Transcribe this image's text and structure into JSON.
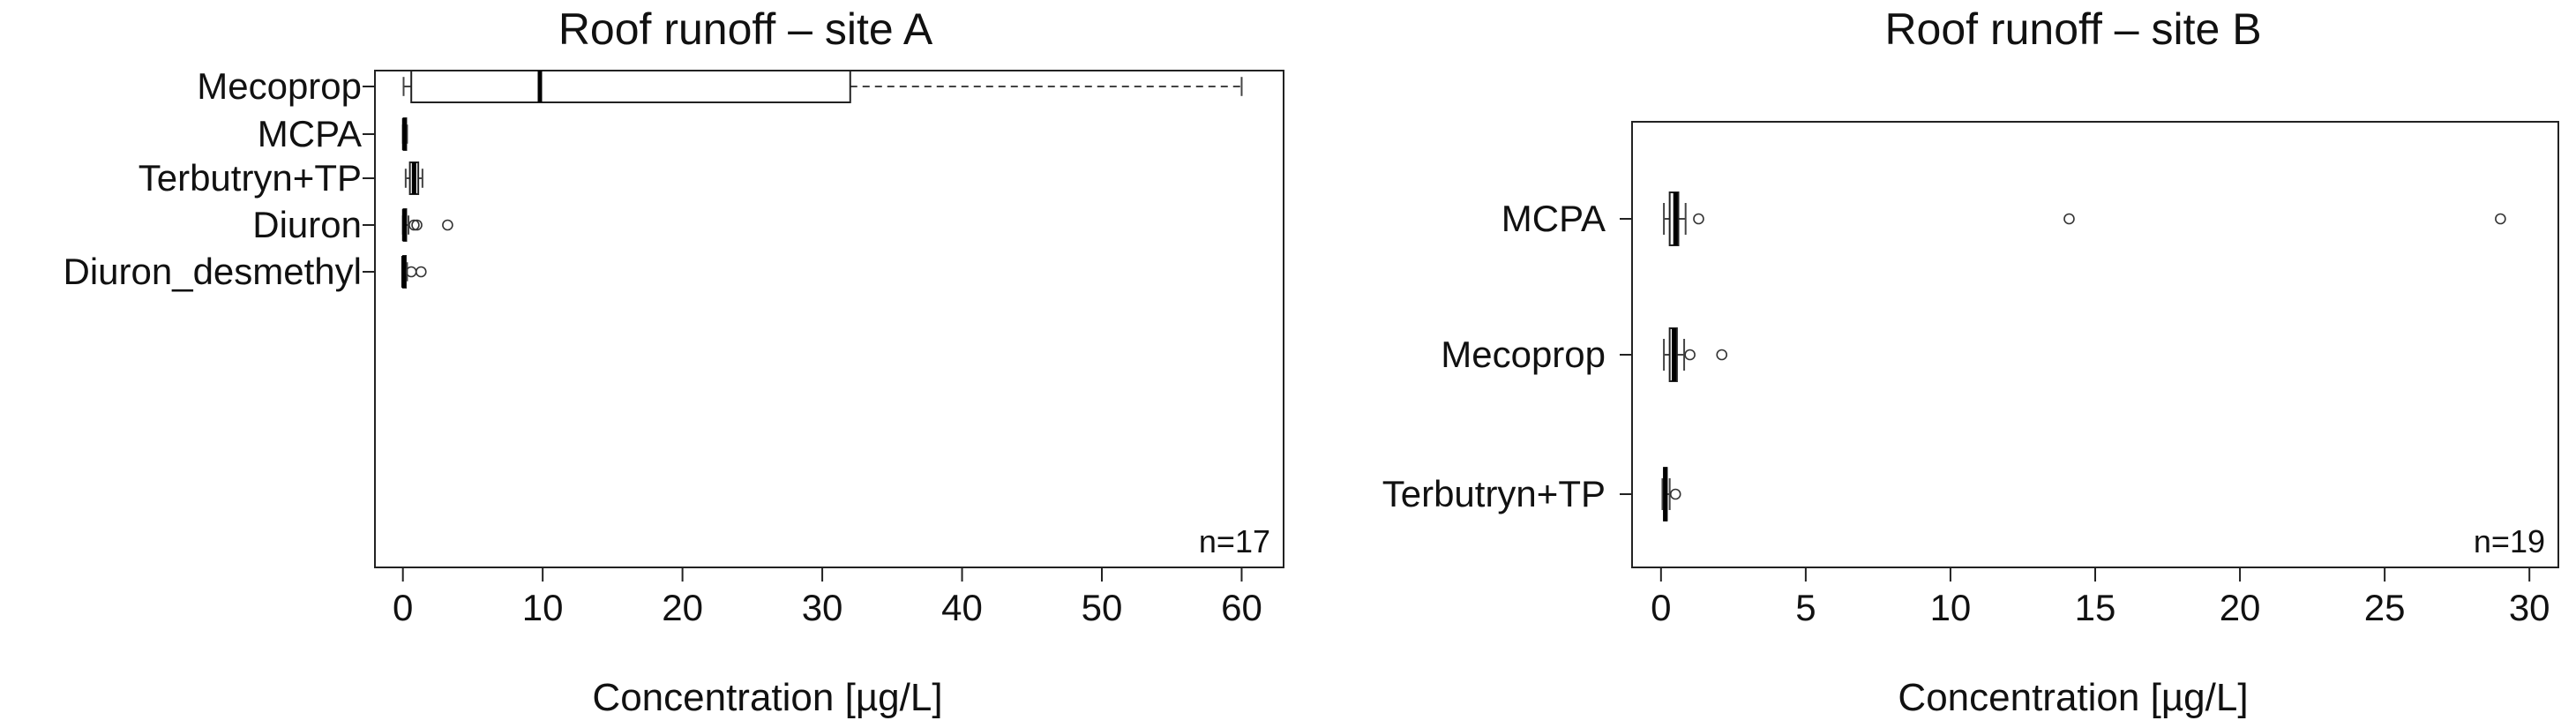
{
  "chart_data": [
    {
      "type": "boxplot",
      "orientation": "horizontal",
      "title": "Roof runoff – site A",
      "xlabel": "Concentration [µg/L]",
      "ylabel": "",
      "xlim": [
        -2,
        63
      ],
      "xticks": [
        0,
        10,
        20,
        30,
        40,
        50,
        60
      ],
      "xtick_labels": [
        "0",
        "10",
        "20",
        "30",
        "40",
        "50",
        "60"
      ],
      "annotation": "n=17",
      "legend": "none",
      "grid": false,
      "categories": [
        "Mecoprop",
        "MCPA",
        "Terbutryn+TP",
        "Diuron",
        "Diuron_desmethyl"
      ],
      "boxes": [
        {
          "name": "Mecoprop",
          "min": 0.05,
          "q1": 0.6,
          "median": 9.8,
          "q3": 32.0,
          "max": 60.0,
          "outliers": []
        },
        {
          "name": "MCPA",
          "min": 0.0,
          "q1": 0.05,
          "median": 0.1,
          "q3": 0.2,
          "max": 0.3,
          "outliers": []
        },
        {
          "name": "Terbutryn+TP",
          "min": 0.2,
          "q1": 0.5,
          "median": 0.8,
          "q3": 1.1,
          "max": 1.4,
          "outliers": []
        },
        {
          "name": "Diuron",
          "min": 0.0,
          "q1": 0.05,
          "median": 0.1,
          "q3": 0.2,
          "max": 0.4,
          "outliers": [
            0.8,
            1.0,
            3.2
          ]
        },
        {
          "name": "Diuron_desmethyl",
          "min": 0.0,
          "q1": 0.02,
          "median": 0.05,
          "q3": 0.1,
          "max": 0.3,
          "outliers": [
            0.6,
            1.3
          ]
        }
      ]
    },
    {
      "type": "boxplot",
      "orientation": "horizontal",
      "title": "Roof runoff – site B",
      "xlabel": "Concentration [µg/L]",
      "ylabel": "",
      "xlim": [
        -1,
        31
      ],
      "xticks": [
        0,
        5,
        10,
        15,
        20,
        25,
        30
      ],
      "xtick_labels": [
        "0",
        "5",
        "10",
        "15",
        "20",
        "25",
        "30"
      ],
      "annotation": "n=19",
      "legend": "none",
      "grid": false,
      "categories": [
        "MCPA",
        "Mecoprop",
        "Terbutryn+TP"
      ],
      "boxes": [
        {
          "name": "MCPA",
          "min": 0.1,
          "q1": 0.3,
          "median": 0.5,
          "q3": 0.6,
          "max": 0.85,
          "outliers": [
            1.3,
            14.1,
            29.0
          ]
        },
        {
          "name": "Mecoprop",
          "min": 0.1,
          "q1": 0.3,
          "median": 0.45,
          "q3": 0.55,
          "max": 0.8,
          "outliers": [
            1.0,
            2.1
          ]
        },
        {
          "name": "Terbutryn+TP",
          "min": 0.05,
          "q1": 0.1,
          "median": 0.15,
          "q3": 0.2,
          "max": 0.3,
          "outliers": [
            0.5
          ]
        }
      ]
    }
  ]
}
